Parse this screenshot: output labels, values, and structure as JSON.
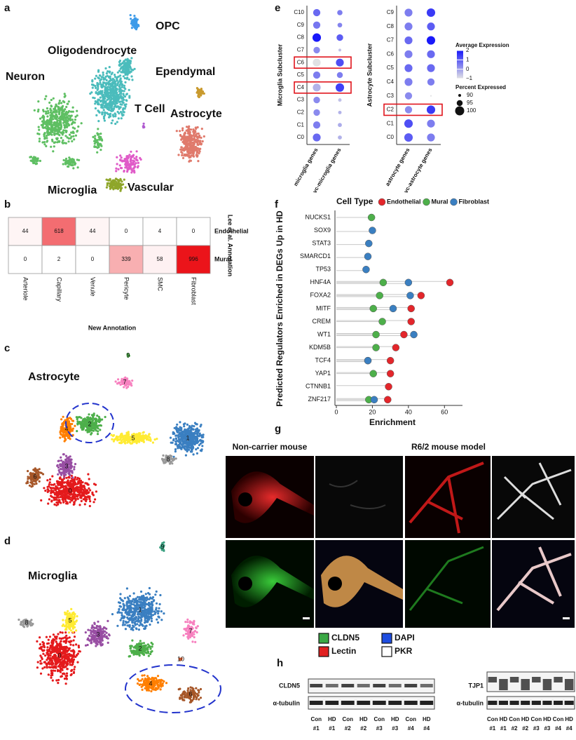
{
  "panel_letters": [
    "a",
    "b",
    "c",
    "d",
    "e",
    "f",
    "g",
    "h"
  ],
  "umap_a": {
    "labels": [
      "OPC",
      "Oligodendrocyte",
      "Ependymal",
      "Neuron",
      "Astrocyte",
      "T Cell",
      "Microglia",
      "Vascular"
    ]
  },
  "heatmap_b": {
    "columns": [
      "Arteriole",
      "Capillary",
      "Venule",
      "Pericyte",
      "SMC",
      "Fibroblast"
    ],
    "rows": [
      {
        "name": "Endothelial",
        "values": [
          44,
          618,
          44,
          0,
          4,
          0
        ]
      },
      {
        "name": "Mural",
        "values": [
          0,
          2,
          0,
          339,
          58,
          996
        ]
      }
    ],
    "x_title": "New Annotation",
    "y_title": "Lee et al. Annotation"
  },
  "umap_c": {
    "title": "Astrocyte",
    "clusters": [
      "0",
      "1",
      "2",
      "3",
      "4",
      "5",
      "6",
      "7",
      "8",
      "9"
    ]
  },
  "umap_d": {
    "title": "Microglia",
    "clusters": [
      "0",
      "1",
      "2",
      "3",
      "4",
      "5",
      "6",
      "7",
      "8",
      "9",
      "10"
    ]
  },
  "dotplot_e": {
    "panels": [
      {
        "y_title": "Microglia Subcluster",
        "clusters": [
          "C10",
          "C9",
          "C8",
          "C7",
          "C6",
          "C5",
          "C4",
          "C3",
          "C2",
          "C1",
          "C0"
        ],
        "highlighted": [
          "C6",
          "C4"
        ],
        "columns": [
          {
            "name": "microglia genes",
            "avg_expression": [
              0.8,
              0.6,
              2,
              0.3,
              -1,
              0.5,
              -0.3,
              0.3,
              0.3,
              0.5,
              0.8
            ],
            "percent_expressed": [
              97,
              97,
              99,
              96,
              98,
              97,
              98,
              96,
              96,
              97,
              98
            ]
          },
          {
            "name": "vc-microglia genes",
            "avg_expression": [
              0.5,
              0.4,
              1,
              -0.5,
              1.2,
              0.5,
              1.4,
              -0.5,
              -0.3,
              -0.2,
              -0.3
            ],
            "percent_expressed": [
              94,
              93,
              96,
              90,
              98,
              95,
              99,
              91,
              91,
              92,
              92
            ]
          }
        ]
      },
      {
        "y_title": "Astrocyte Subcluster",
        "clusters": [
          "C9",
          "C8",
          "C7",
          "C6",
          "C5",
          "C4",
          "C3",
          "C2",
          "C1",
          "C0"
        ],
        "highlighted": [
          "C2"
        ],
        "columns": [
          {
            "name": "astrocyte genes",
            "avg_expression": [
              0.5,
              0.5,
              0.8,
              0.5,
              0.8,
              0.5,
              0.3,
              0.3,
              1.2,
              1
            ],
            "percent_expressed": [
              98,
              98,
              98,
              98,
              98,
              98,
              97,
              97,
              99,
              99
            ]
          },
          {
            "name": "vc-astrocyte genes",
            "avg_expression": [
              1.5,
              1,
              2,
              0.8,
              0.8,
              0.5,
              -1,
              1.5,
              0.5,
              0.5
            ],
            "percent_expressed": [
              99,
              98,
              99,
              98,
              98,
              97,
              88,
              99,
              98,
              98
            ]
          }
        ]
      }
    ],
    "legend": {
      "color_title": "Average Expression",
      "color_ticks": [
        2,
        1,
        0,
        {
          "value": -1,
          "label": "−1"
        }
      ],
      "color_range": [
        -1,
        2
      ],
      "size_title": "Percent Expressed",
      "size_ticks": [
        90,
        95,
        100
      ]
    }
  },
  "chart_data": {
    "type": "lollipop",
    "legend_title": "Cell Type",
    "y_title": "Predicted Regulators Enriched in DEGs Up in HD",
    "x_title": "Enrichment",
    "categories": [
      "NUCKS1",
      "SOX9",
      "STAT3",
      "SMARCD1",
      "TP53",
      "HNF4A",
      "FOXA2",
      "MITF",
      "CREM",
      "WT1",
      "KDM5B",
      "TCF4",
      "YAP1",
      "CTNNB1",
      "ZNF217"
    ],
    "series": [
      {
        "name": "Endothelial",
        "color": "#e3262b",
        "values": [
          null,
          null,
          null,
          null,
          null,
          63,
          47,
          41.5,
          41.5,
          37.5,
          33,
          30,
          30,
          29,
          28.5
        ]
      },
      {
        "name": "Mural",
        "color": "#4daf4a",
        "values": [
          19.5,
          null,
          null,
          null,
          null,
          26,
          24,
          20.5,
          25.5,
          22,
          22,
          17.5,
          20.5,
          null,
          18
        ]
      },
      {
        "name": "Fibroblast",
        "color": "#3a7fc1",
        "values": [
          null,
          20,
          18,
          17.5,
          16.5,
          40,
          41,
          31.5,
          null,
          43,
          null,
          17.5,
          null,
          null,
          21
        ]
      }
    ],
    "xlim": [
      0,
      70
    ],
    "xticks": [
      0,
      20,
      40,
      60
    ]
  },
  "micrographs_g": {
    "titles": [
      "Non-carrier mouse",
      "R6/2 mouse model"
    ],
    "legend": [
      {
        "label": "CLDN5",
        "color": "#3aa845"
      },
      {
        "label": "DAPI",
        "color": "#1e4de0"
      },
      {
        "label": "Lectin",
        "color": "#e02020"
      },
      {
        "label": "PKR",
        "color": "#ffffff"
      }
    ]
  },
  "blot_h": {
    "blots": [
      {
        "label": "CLDN5",
        "loading": "α-tubulin"
      },
      {
        "label": "TJP1",
        "loading": "α-tubulin"
      }
    ],
    "conditions": [
      "Con",
      "HD",
      "Con",
      "HD",
      "Con",
      "HD",
      "Con",
      "HD"
    ],
    "samples": [
      "#1",
      "#1",
      "#2",
      "#2",
      "#3",
      "#3",
      "#4",
      "#4"
    ]
  }
}
